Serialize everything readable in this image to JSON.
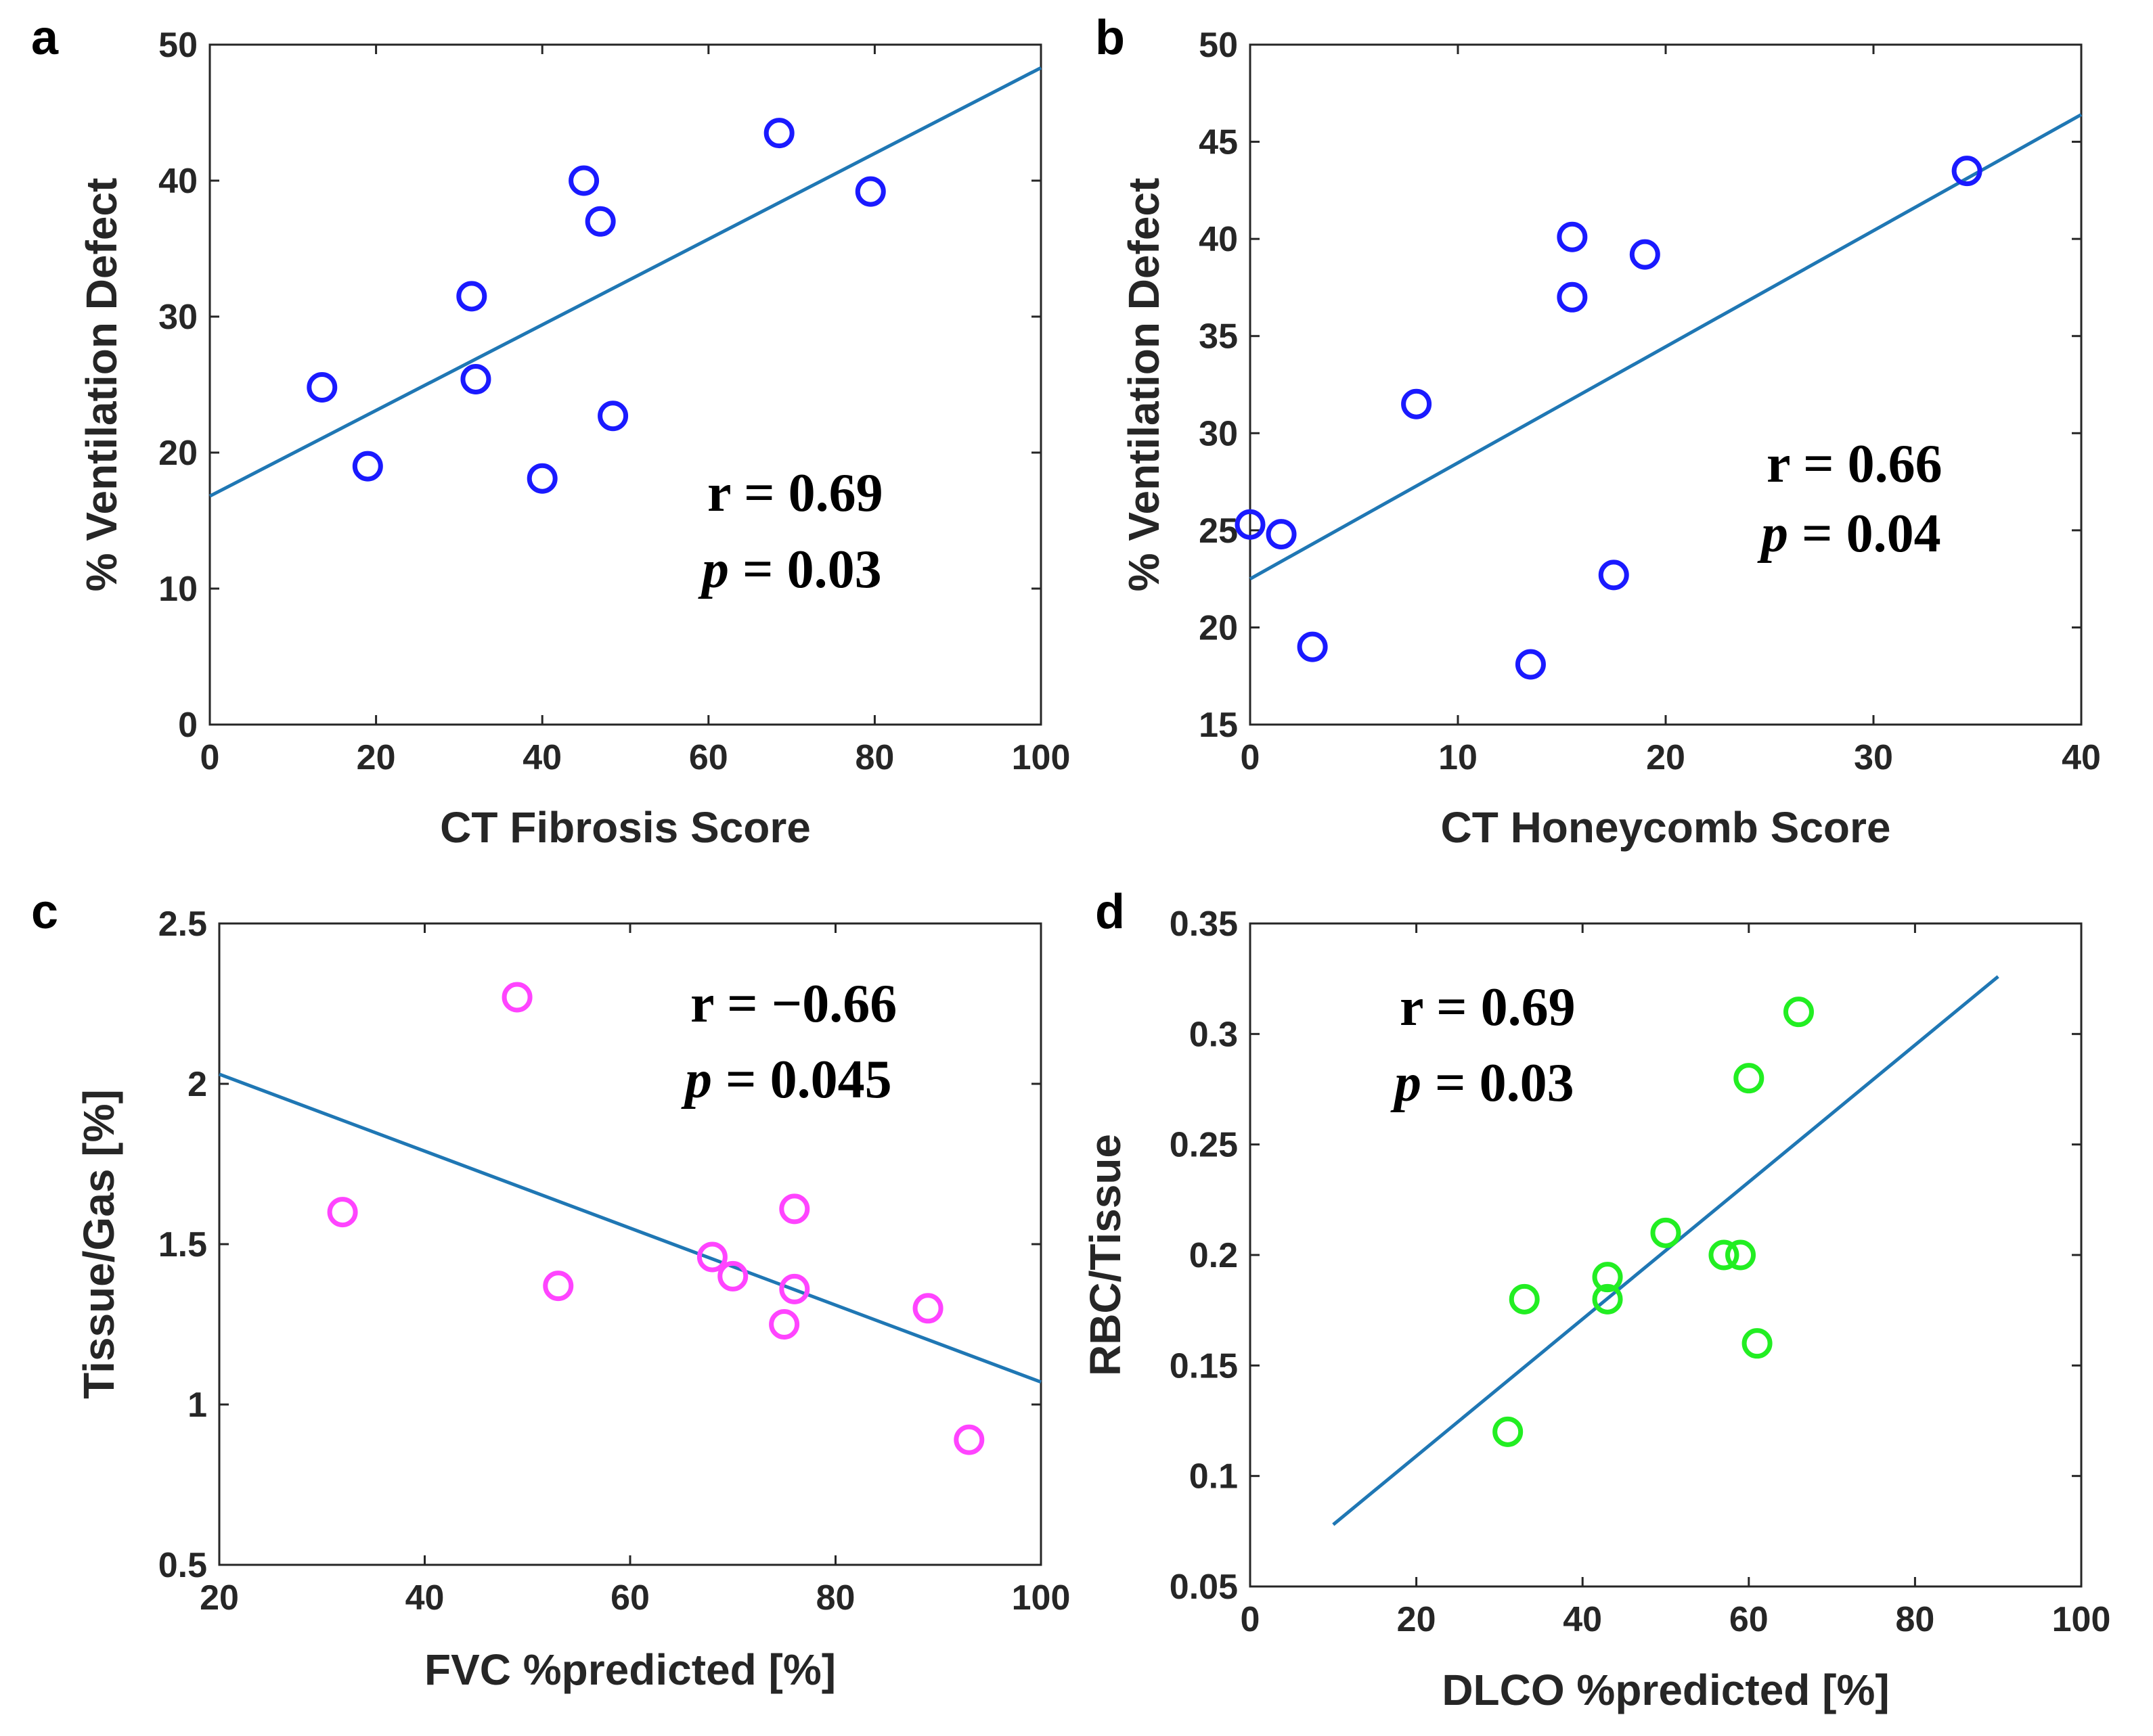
{
  "colors": {
    "fit_line": "#1f77b4",
    "blue_marker": "#1a1aff",
    "magenta_marker": "#ff44ff",
    "green_marker": "#22ee22"
  },
  "chart_data": [
    {
      "panel": "a",
      "type": "scatter",
      "title": "",
      "xlabel": "CT Fibrosis Score",
      "ylabel": "% Ventilation Defect",
      "xlim": [
        0,
        100
      ],
      "ylim": [
        0,
        50
      ],
      "xticks": [
        0,
        20,
        40,
        60,
        80,
        100
      ],
      "yticks": [
        0,
        10,
        20,
        30,
        40,
        50
      ],
      "x": [
        13.5,
        19,
        31.5,
        32,
        40,
        45,
        47,
        48.5,
        68.5,
        79.5
      ],
      "y": [
        24.8,
        19,
        31.5,
        25.4,
        18.1,
        40,
        37,
        22.7,
        43.5,
        39.2
      ],
      "marker_color": "#1a1aff",
      "fit": {
        "x": [
          0,
          100
        ],
        "y": [
          16.8,
          48.3
        ]
      },
      "stats": {
        "r": "r = 0.69",
        "p_symbol": "p",
        "p_value": " = 0.03"
      }
    },
    {
      "panel": "b",
      "type": "scatter",
      "title": "",
      "xlabel": "CT Honeycomb Score",
      "ylabel": "% Ventilation Defect",
      "xlim": [
        0,
        40
      ],
      "ylim": [
        15,
        50
      ],
      "xticks": [
        0,
        10,
        20,
        30,
        40
      ],
      "yticks": [
        15,
        20,
        25,
        30,
        35,
        40,
        45,
        50
      ],
      "x": [
        0,
        1.5,
        3,
        8,
        13.5,
        15.5,
        15.5,
        17.5,
        19,
        34.5
      ],
      "y": [
        25.3,
        24.8,
        19,
        31.5,
        18.1,
        40.1,
        37,
        22.7,
        39.2,
        43.5
      ],
      "marker_color": "#1a1aff",
      "fit": {
        "x": [
          0,
          40
        ],
        "y": [
          22.5,
          46.4
        ]
      },
      "stats": {
        "r": "r = 0.66",
        "p_symbol": "p",
        "p_value": " = 0.04"
      }
    },
    {
      "panel": "c",
      "type": "scatter",
      "title": "",
      "xlabel": "FVC %predicted [%]",
      "ylabel": "Tissue/Gas [%]",
      "xlim": [
        20,
        100
      ],
      "ylim": [
        0.5,
        2.5
      ],
      "xticks": [
        20,
        40,
        60,
        80,
        100
      ],
      "yticks": [
        0.5,
        1,
        1.5,
        2,
        2.5
      ],
      "x": [
        32,
        49,
        53,
        68,
        70,
        75,
        76,
        76,
        89,
        93
      ],
      "y": [
        1.6,
        2.27,
        1.37,
        1.46,
        1.4,
        1.25,
        1.61,
        1.36,
        1.3,
        0.89
      ],
      "marker_color": "#ff44ff",
      "fit": {
        "x": [
          20,
          100
        ],
        "y": [
          2.03,
          1.07
        ]
      },
      "stats": {
        "r": "r = −0.66",
        "p_symbol": "p",
        "p_value": " = 0.045"
      }
    },
    {
      "panel": "d",
      "type": "scatter",
      "title": "",
      "xlabel": "DLCO %predicted [%]",
      "ylabel": "RBC/Tissue",
      "xlim": [
        0,
        100
      ],
      "ylim": [
        0.05,
        0.35
      ],
      "xticks": [
        0,
        20,
        40,
        60,
        80,
        100
      ],
      "yticks": [
        0.05,
        0.1,
        0.15,
        0.2,
        0.25,
        0.3,
        0.35
      ],
      "x": [
        31,
        33,
        43,
        43,
        50,
        57,
        59,
        60,
        61,
        66
      ],
      "y": [
        0.12,
        0.18,
        0.19,
        0.18,
        0.21,
        0.2,
        0.2,
        0.28,
        0.16,
        0.31
      ],
      "marker_color": "#22ee22",
      "fit": {
        "x": [
          10,
          90
        ],
        "y": [
          0.078,
          0.326
        ]
      },
      "stats": {
        "r": "r = 0.69",
        "p_symbol": "p",
        "p_value": " = 0.03"
      }
    }
  ]
}
